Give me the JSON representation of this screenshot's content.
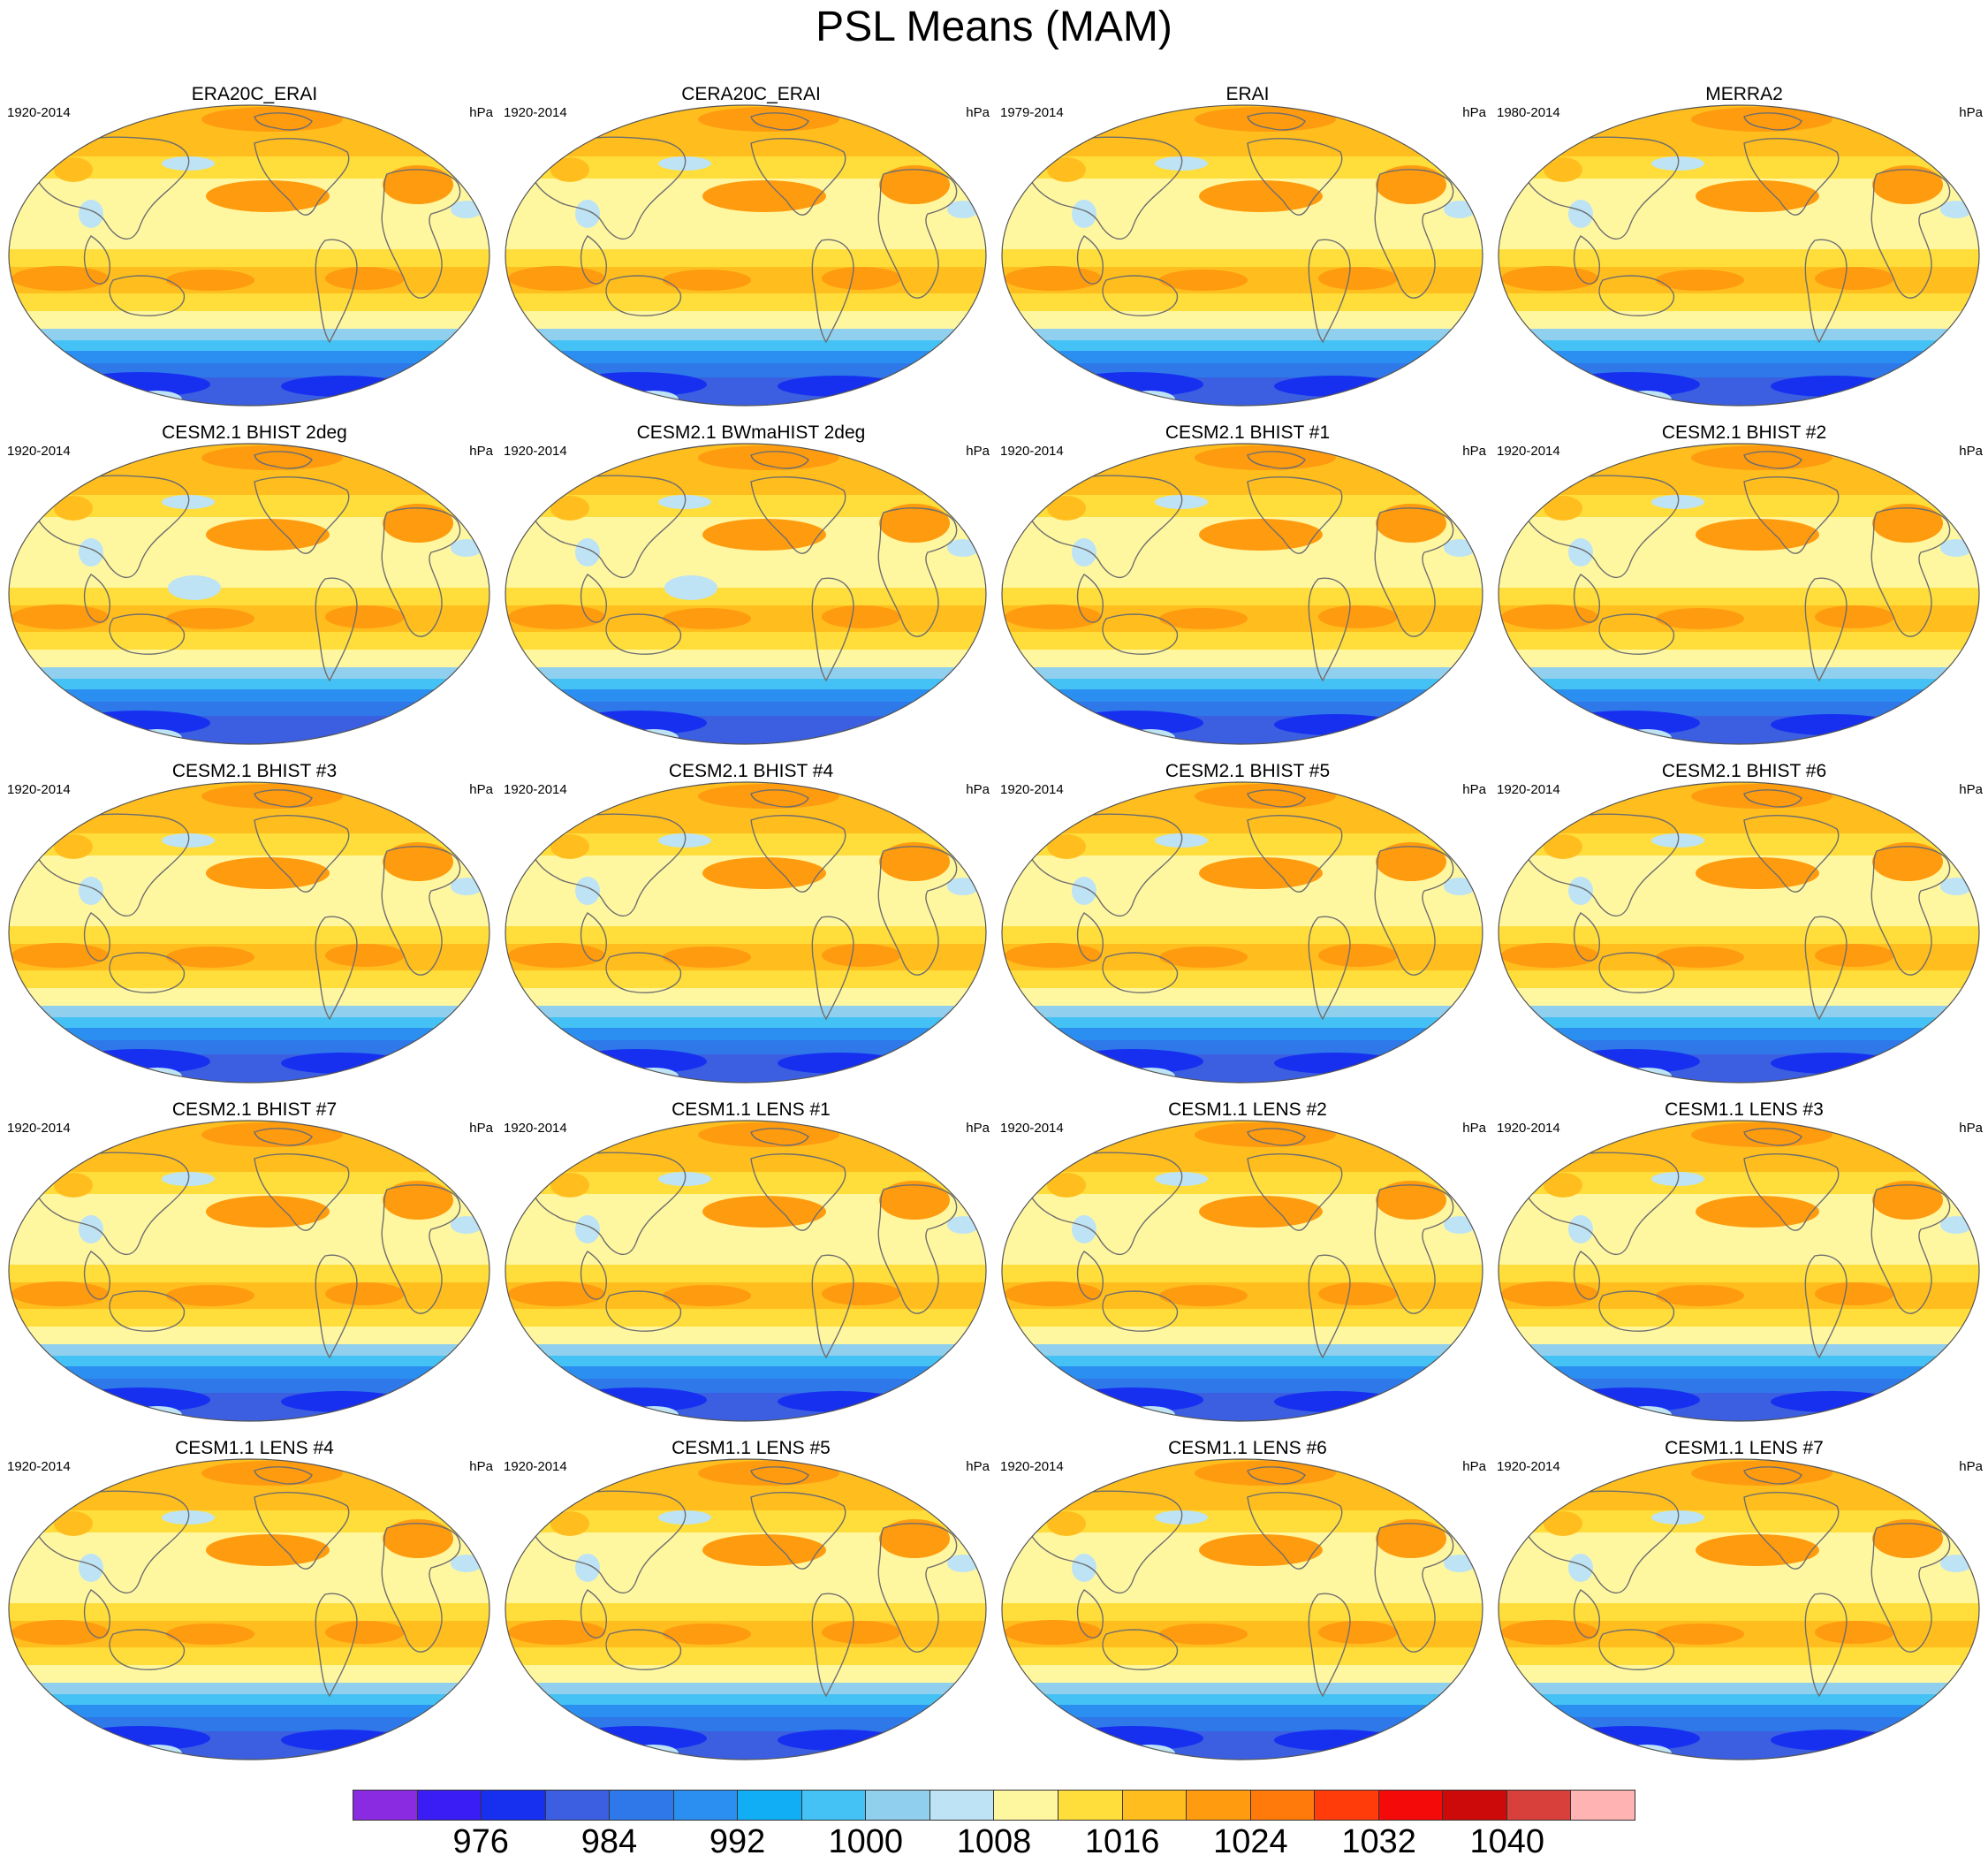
{
  "title": "PSL Means (MAM)",
  "units": "hPa",
  "panels": [
    {
      "title": "ERA20C_ERAI",
      "period": "1920-2014"
    },
    {
      "title": "CERA20C_ERAI",
      "period": "1920-2014"
    },
    {
      "title": "ERAI",
      "period": "1979-2014"
    },
    {
      "title": "MERRA2",
      "period": "1980-2014"
    },
    {
      "title": "CESM2.1 BHIST 2deg",
      "period": "1920-2014"
    },
    {
      "title": "CESM2.1 BWmaHIST 2deg",
      "period": "1920-2014"
    },
    {
      "title": "CESM2.1 BHIST #1",
      "period": "1920-2014"
    },
    {
      "title": "CESM2.1 BHIST #2",
      "period": "1920-2014"
    },
    {
      "title": "CESM2.1 BHIST #3",
      "period": "1920-2014"
    },
    {
      "title": "CESM2.1 BHIST #4",
      "period": "1920-2014"
    },
    {
      "title": "CESM2.1 BHIST #5",
      "period": "1920-2014"
    },
    {
      "title": "CESM2.1 BHIST #6",
      "period": "1920-2014"
    },
    {
      "title": "CESM2.1 BHIST #7",
      "period": "1920-2014"
    },
    {
      "title": "CESM1.1 LENS #1",
      "period": "1920-2014"
    },
    {
      "title": "CESM1.1 LENS #2",
      "period": "1920-2014"
    },
    {
      "title": "CESM1.1 LENS #3",
      "period": "1920-2014"
    },
    {
      "title": "CESM1.1 LENS #4",
      "period": "1920-2014"
    },
    {
      "title": "CESM1.1 LENS #5",
      "period": "1920-2014"
    },
    {
      "title": "CESM1.1 LENS #6",
      "period": "1920-2014"
    },
    {
      "title": "CESM1.1 LENS #7",
      "period": "1920-2014"
    }
  ],
  "colorbar": {
    "colors": [
      "#8a2be2",
      "#3a1cf5",
      "#1730f0",
      "#3b5fe0",
      "#2e78ea",
      "#2a8ff0",
      "#12aef5",
      "#45c2f5",
      "#90d0ee",
      "#bde3f5",
      "#fff7a0",
      "#ffdd3a",
      "#ffbe1e",
      "#ff9b0f",
      "#ff7a0a",
      "#ff3c0a",
      "#f50a0a",
      "#cc0a0a",
      "#d8403c",
      "#ffb3b3"
    ],
    "tick_labels": [
      "976",
      "984",
      "992",
      "1000",
      "1008",
      "1016",
      "1024",
      "1032",
      "1040"
    ]
  },
  "colors": {
    "land_outline": "#6e6e6e",
    "map_border": "#555555"
  }
}
